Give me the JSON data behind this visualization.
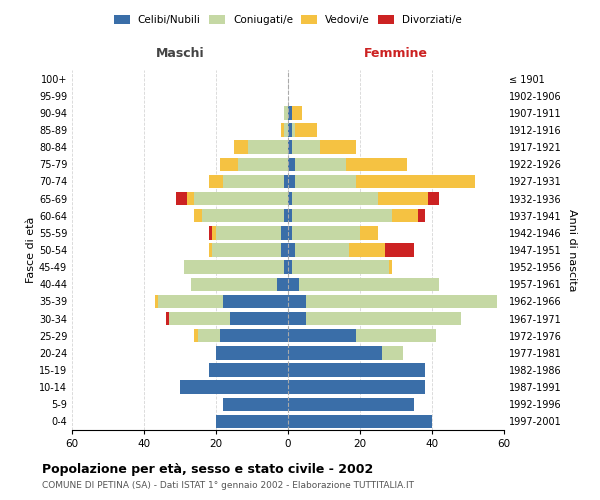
{
  "age_groups": [
    "0-4",
    "5-9",
    "10-14",
    "15-19",
    "20-24",
    "25-29",
    "30-34",
    "35-39",
    "40-44",
    "45-49",
    "50-54",
    "55-59",
    "60-64",
    "65-69",
    "70-74",
    "75-79",
    "80-84",
    "85-89",
    "90-94",
    "95-99",
    "100+"
  ],
  "birth_years": [
    "1997-2001",
    "1992-1996",
    "1987-1991",
    "1982-1986",
    "1977-1981",
    "1972-1976",
    "1967-1971",
    "1962-1966",
    "1957-1961",
    "1952-1956",
    "1947-1951",
    "1942-1946",
    "1937-1941",
    "1932-1936",
    "1927-1931",
    "1922-1926",
    "1917-1921",
    "1912-1916",
    "1907-1911",
    "1902-1906",
    "≤ 1901"
  ],
  "male": {
    "celibi": [
      20,
      18,
      30,
      22,
      20,
      19,
      16,
      18,
      3,
      1,
      2,
      2,
      1,
      0,
      1,
      0,
      0,
      0,
      0,
      0,
      0
    ],
    "coniugati": [
      0,
      0,
      0,
      0,
      0,
      6,
      17,
      18,
      24,
      28,
      19,
      18,
      23,
      26,
      17,
      14,
      11,
      1,
      1,
      0,
      0
    ],
    "vedovi": [
      0,
      0,
      0,
      0,
      0,
      1,
      0,
      1,
      0,
      0,
      1,
      1,
      2,
      2,
      4,
      5,
      4,
      1,
      0,
      0,
      0
    ],
    "divorziati": [
      0,
      0,
      0,
      0,
      0,
      0,
      1,
      0,
      0,
      0,
      0,
      1,
      0,
      3,
      0,
      0,
      0,
      0,
      0,
      0,
      0
    ]
  },
  "female": {
    "nubili": [
      40,
      35,
      38,
      38,
      26,
      19,
      5,
      5,
      3,
      1,
      2,
      1,
      1,
      1,
      2,
      2,
      1,
      1,
      1,
      0,
      0
    ],
    "coniugate": [
      0,
      0,
      0,
      0,
      6,
      22,
      43,
      53,
      39,
      27,
      15,
      19,
      28,
      24,
      17,
      14,
      8,
      1,
      0,
      0,
      0
    ],
    "vedove": [
      0,
      0,
      0,
      0,
      0,
      0,
      0,
      0,
      0,
      1,
      10,
      5,
      7,
      14,
      33,
      17,
      10,
      6,
      3,
      0,
      0
    ],
    "divorziate": [
      0,
      0,
      0,
      0,
      0,
      0,
      0,
      0,
      0,
      0,
      8,
      0,
      2,
      3,
      0,
      0,
      0,
      0,
      0,
      0,
      0
    ]
  },
  "colors": {
    "celibi": "#3a6ea8",
    "coniugati": "#c5d8a4",
    "vedovi": "#f5c242",
    "divorziati": "#cc2222"
  },
  "xlim": 60,
  "title": "Popolazione per età, sesso e stato civile - 2002",
  "subtitle": "COMUNE DI PETINA (SA) - Dati ISTAT 1° gennaio 2002 - Elaborazione TUTTITALIA.IT",
  "ylabel_left": "Fasce di età",
  "ylabel_right": "Anni di nascita",
  "xlabel_left": "Maschi",
  "xlabel_right": "Femmine"
}
